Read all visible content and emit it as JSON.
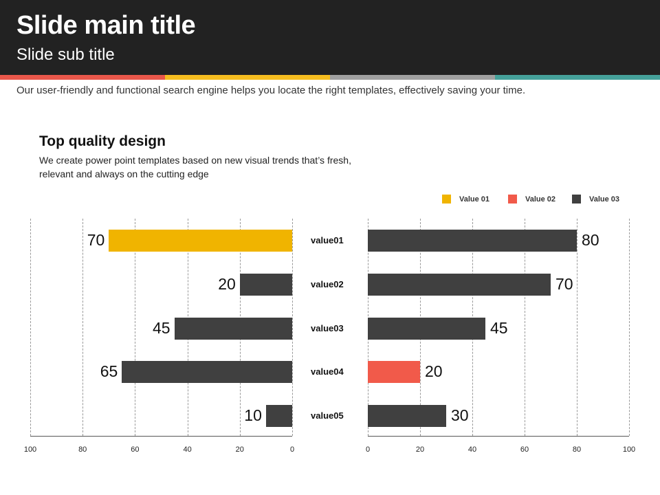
{
  "header": {
    "title": "Slide main title",
    "subtitle": "Slide sub title"
  },
  "description": "Our user-friendly and functional search engine helps you locate the right templates, effectively saving your time.",
  "section": {
    "heading": "Top quality design",
    "text": "We create power point templates based on new visual trends that’s fresh, relevant and always on the cutting edge"
  },
  "colors": {
    "strip": [
      "#e9574a",
      "#f5bd1f",
      "#a0a0a0",
      "#45a19a"
    ],
    "value01": "#f0b400",
    "value02": "#f15a4a",
    "value03": "#404040"
  },
  "chart_data": [
    {
      "type": "bar",
      "orientation": "horizontal-reversed",
      "categories": [
        "value01",
        "value02",
        "value03",
        "value04",
        "value05"
      ],
      "values": [
        70,
        20,
        45,
        65,
        10
      ],
      "series_color": [
        "value01",
        "value03",
        "value03",
        "value03",
        "value03"
      ],
      "xlim": [
        100,
        0
      ],
      "xticks": [
        "100",
        "80",
        "60",
        "40",
        "20",
        "0"
      ],
      "grid": true
    },
    {
      "type": "bar",
      "orientation": "horizontal",
      "categories": [
        "value01",
        "value02",
        "value03",
        "value04",
        "value05"
      ],
      "values": [
        80,
        70,
        45,
        20,
        30
      ],
      "series_color": [
        "value03",
        "value03",
        "value03",
        "value02",
        "value03"
      ],
      "xlim": [
        0,
        100
      ],
      "xticks": [
        "0",
        "20",
        "40",
        "60",
        "80",
        "100"
      ],
      "grid": true,
      "legend": [
        {
          "label": "Value 01",
          "color": "value01"
        },
        {
          "label": "Value 02",
          "color": "value02"
        },
        {
          "label": "Value 03",
          "color": "value03"
        }
      ],
      "legend_position": "top-right"
    }
  ]
}
